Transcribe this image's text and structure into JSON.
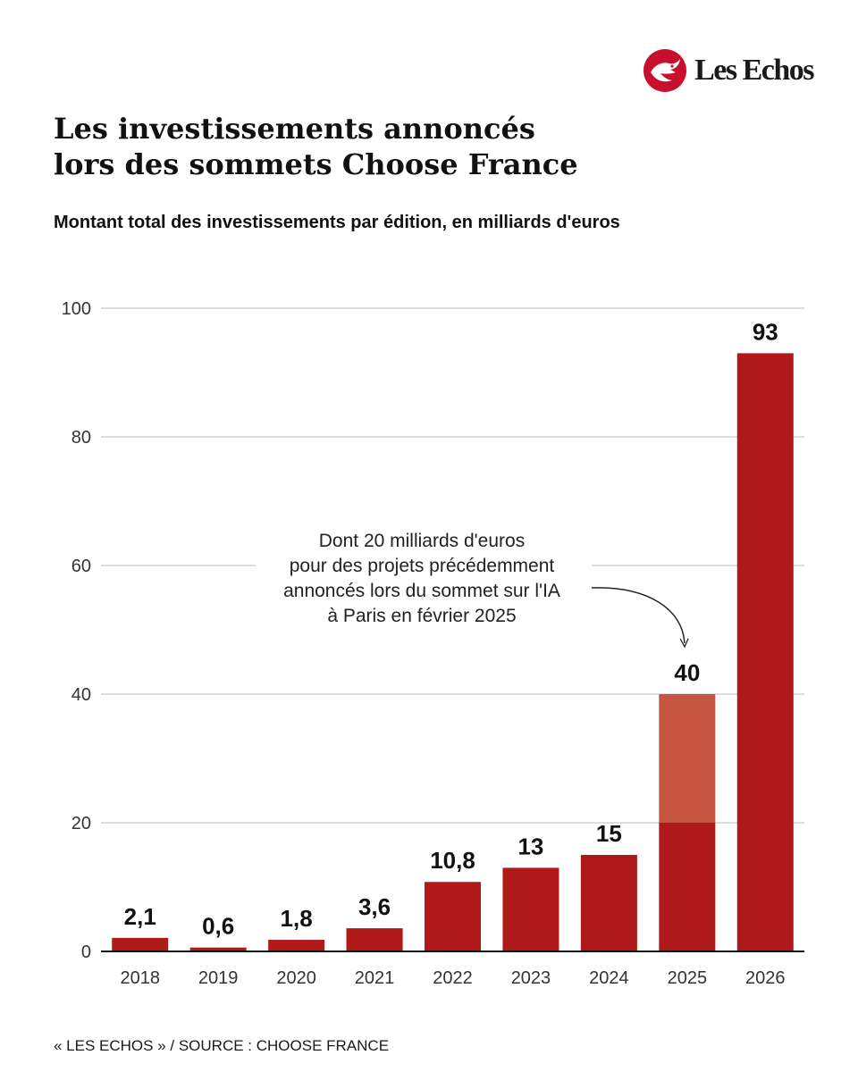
{
  "brand": {
    "name": "Les Echos"
  },
  "title_lines": [
    "Les investissements annoncés",
    "lors des sommets Choose France"
  ],
  "subtitle": "Montant total des investissements par édition, en milliards d'euros",
  "source": "« LES ECHOS » / SOURCE : CHOOSE FRANCE",
  "colors": {
    "bar": "#b0191a",
    "bar_highlight": "#c55540",
    "brand_red": "#c8102e"
  },
  "chart_data": {
    "type": "bar",
    "categories": [
      "2018",
      "2019",
      "2020",
      "2021",
      "2022",
      "2023",
      "2024",
      "2025",
      "2026"
    ],
    "values": [
      2.1,
      0.6,
      1.8,
      3.6,
      10.8,
      13,
      15,
      40,
      93
    ],
    "value_labels": [
      "2,1",
      "0,6",
      "1,8",
      "3,6",
      "10,8",
      "13",
      "15",
      "40",
      "93"
    ],
    "highlight": {
      "category": "2025",
      "upper_segment": [
        20,
        40
      ]
    },
    "ylim": [
      0,
      100
    ],
    "yticks": [
      0,
      20,
      40,
      60,
      80,
      100
    ],
    "grid": true,
    "xlabel": "",
    "ylabel": "",
    "annotation": {
      "lines": [
        "Dont 20 milliards d'euros",
        "pour des projets précédemment",
        "annoncés lors du sommet sur l'IA",
        "à Paris en février 2025"
      ],
      "points_to": "2025"
    }
  }
}
